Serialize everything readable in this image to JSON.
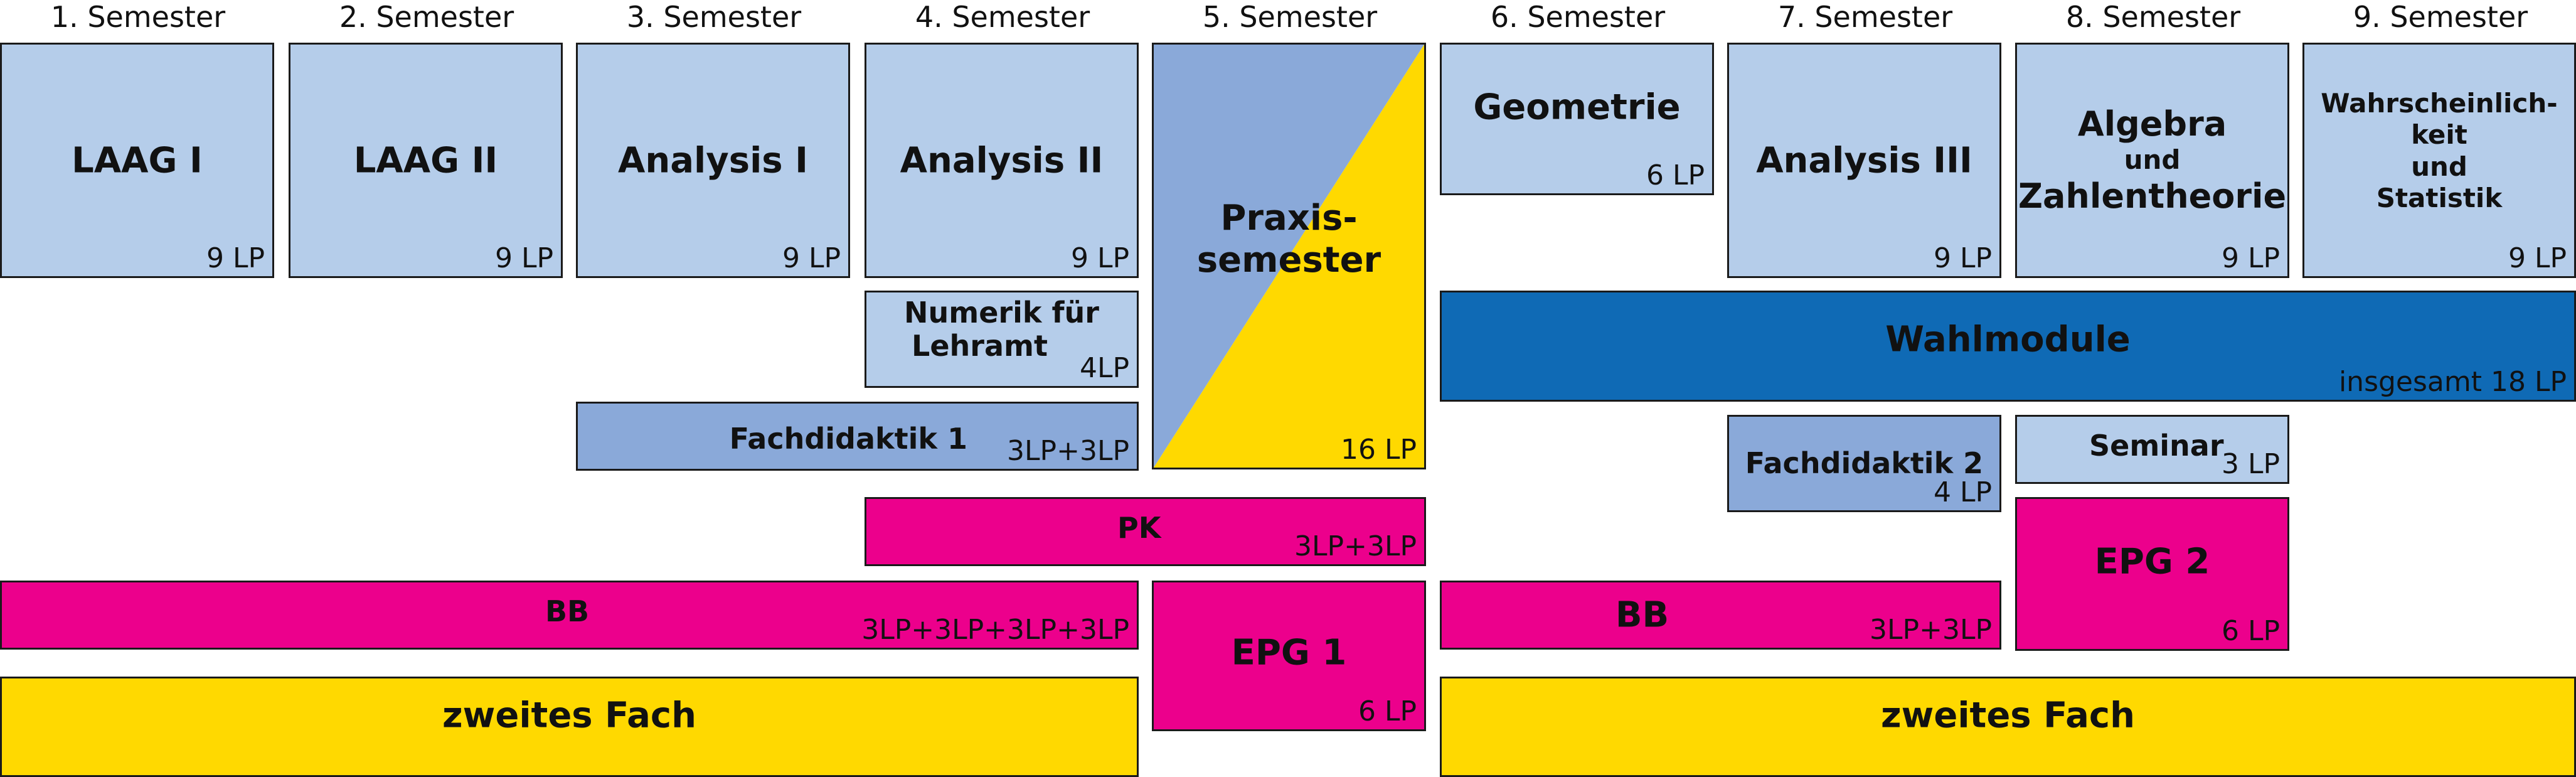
{
  "semesters": [
    "1. Semester",
    "2. Semester",
    "3. Semester",
    "4. Semester",
    "5. Semester",
    "6. Semester",
    "7. Semester",
    "8. Semester",
    "9. Semester"
  ],
  "modules": {
    "laag1": {
      "title": "LAAG I",
      "lp": "9 LP"
    },
    "laag2": {
      "title": "LAAG II",
      "lp": "9 LP"
    },
    "ana1": {
      "title": "Analysis I",
      "lp": "9 LP"
    },
    "ana2": {
      "title": "Analysis II",
      "lp": "9 LP"
    },
    "praxis": {
      "title1": "Praxis-",
      "title2": "semester",
      "lp": "16 LP"
    },
    "geo": {
      "title": "Geometrie",
      "lp": "6 LP"
    },
    "ana3": {
      "title": "Analysis III",
      "lp": "9 LP"
    },
    "algebra": {
      "title1": "Algebra",
      "und": "und",
      "title2": "Zahlentheorie",
      "lp": "9 LP"
    },
    "wahr": {
      "title1": "Wahrscheinlich-",
      "title2": "keit",
      "und": "und",
      "title3": "Statistik",
      "lp": "9 LP"
    },
    "numerik": {
      "title1": "Numerik für",
      "title2": "Lehramt",
      "lp": "4LP"
    },
    "wahlmodule": {
      "title": "Wahlmodule",
      "lp": "insgesamt 18 LP"
    },
    "fd1": {
      "title": "Fachdidaktik 1",
      "lp": "3LP+3LP"
    },
    "fd2": {
      "title": "Fachdidaktik 2",
      "lp": "4 LP"
    },
    "seminar": {
      "title": "Seminar",
      "lp": "3 LP"
    },
    "pk": {
      "title": "PK",
      "lp": "3LP+3LP"
    },
    "epg2": {
      "title": "EPG 2",
      "lp": "6 LP"
    },
    "bb1": {
      "title": "BB",
      "lp": "3LP+3LP+3LP+3LP"
    },
    "epg1": {
      "title": "EPG 1",
      "lp": "6 LP"
    },
    "bb2": {
      "title": "BB",
      "lp": "3LP+3LP"
    },
    "fach1": {
      "title": "zweites Fach"
    },
    "fach2": {
      "title": "zweites Fach"
    }
  },
  "colors": {
    "light_blue": "#b5cdea",
    "mid_blue": "#8aa9d9",
    "magenta": "#ec008c",
    "yellow": "#ffd900",
    "dark_blue": "#0f6ab5"
  }
}
